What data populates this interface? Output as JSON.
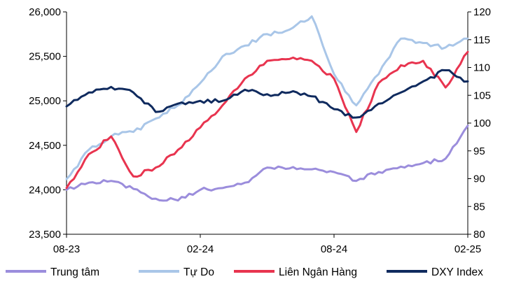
{
  "chart_data": {
    "type": "line",
    "title": "",
    "xlabel": "",
    "ylabel": "",
    "x_ticks": [
      "08-23",
      "02-24",
      "08-24",
      "02-25"
    ],
    "y_left": {
      "ticks": [
        "23,500",
        "24,000",
        "24,500",
        "25,000",
        "25,500",
        "26,000"
      ],
      "range": [
        23500,
        26000
      ]
    },
    "y_right": {
      "ticks": [
        "80",
        "85",
        "90",
        "95",
        "100",
        "105",
        "110",
        "115",
        "120"
      ],
      "range": [
        80,
        120
      ]
    },
    "x_range": [
      "2023-08",
      "2025-02"
    ],
    "grid": false,
    "legend_position": "bottom",
    "series": [
      {
        "name": "Trung tâm",
        "color": "#9b8ddc",
        "axis": "left",
        "points": [
          [
            "2023-08",
            24000
          ],
          [
            "2023-09",
            24080
          ],
          [
            "2023-10",
            24100
          ],
          [
            "2023-11",
            24010
          ],
          [
            "2023-12",
            23900
          ],
          [
            "2024-01",
            23880
          ],
          [
            "2024-02",
            24000
          ],
          [
            "2024-03",
            24020
          ],
          [
            "2024-04",
            24080
          ],
          [
            "2024-05",
            24250
          ],
          [
            "2024-06",
            24240
          ],
          [
            "2024-07",
            24230
          ],
          [
            "2024-08",
            24200
          ],
          [
            "2024-09",
            24100
          ],
          [
            "2024-10",
            24200
          ],
          [
            "2024-11",
            24260
          ],
          [
            "2024-12",
            24300
          ],
          [
            "2025-01",
            24350
          ],
          [
            "2025-02",
            24720
          ]
        ]
      },
      {
        "name": "Tự Do",
        "color": "#a9c6e8",
        "axis": "left",
        "points": [
          [
            "2023-08",
            24120
          ],
          [
            "2023-09",
            24450
          ],
          [
            "2023-10",
            24600
          ],
          [
            "2023-11",
            24650
          ],
          [
            "2023-12",
            24800
          ],
          [
            "2024-01",
            24950
          ],
          [
            "2024-02",
            25200
          ],
          [
            "2024-03",
            25500
          ],
          [
            "2024-04",
            25620
          ],
          [
            "2024-05",
            25750
          ],
          [
            "2024-06",
            25800
          ],
          [
            "2024-07",
            25950
          ],
          [
            "2024-08",
            25300
          ],
          [
            "2024-09",
            24950
          ],
          [
            "2024-10",
            25300
          ],
          [
            "2024-11",
            25700
          ],
          [
            "2024-12",
            25650
          ],
          [
            "2025-01",
            25600
          ],
          [
            "2025-02",
            25700
          ]
        ]
      },
      {
        "name": "Liên Ngân Hàng",
        "color": "#e8344f",
        "axis": "left",
        "points": [
          [
            "2023-08",
            24020
          ],
          [
            "2023-09",
            24400
          ],
          [
            "2023-10",
            24600
          ],
          [
            "2023-11",
            24150
          ],
          [
            "2023-12",
            24250
          ],
          [
            "2024-01",
            24450
          ],
          [
            "2024-02",
            24700
          ],
          [
            "2024-03",
            24950
          ],
          [
            "2024-04",
            25250
          ],
          [
            "2024-05",
            25450
          ],
          [
            "2024-06",
            25470
          ],
          [
            "2024-07",
            25450
          ],
          [
            "2024-08",
            25250
          ],
          [
            "2024-09",
            24650
          ],
          [
            "2024-10",
            25200
          ],
          [
            "2024-11",
            25400
          ],
          [
            "2024-12",
            25450
          ],
          [
            "2025-01",
            25150
          ],
          [
            "2025-02",
            25550
          ]
        ]
      },
      {
        "name": "DXY Index",
        "color": "#0f2a5e",
        "axis": "right",
        "points": [
          [
            "2023-08",
            103
          ],
          [
            "2023-09",
            105.5
          ],
          [
            "2023-10",
            106.5
          ],
          [
            "2023-11",
            105.5
          ],
          [
            "2023-12",
            102
          ],
          [
            "2024-01",
            103.5
          ],
          [
            "2024-02",
            104
          ],
          [
            "2024-03",
            104
          ],
          [
            "2024-04",
            106
          ],
          [
            "2024-05",
            105.2
          ],
          [
            "2024-06",
            105.5
          ],
          [
            "2024-07",
            104.8
          ],
          [
            "2024-08",
            102.5
          ],
          [
            "2024-09",
            101
          ],
          [
            "2024-10",
            103.5
          ],
          [
            "2024-11",
            105.5
          ],
          [
            "2024-12",
            107.5
          ],
          [
            "2025-01",
            109.5
          ],
          [
            "2025-02",
            107.5
          ]
        ]
      }
    ]
  }
}
